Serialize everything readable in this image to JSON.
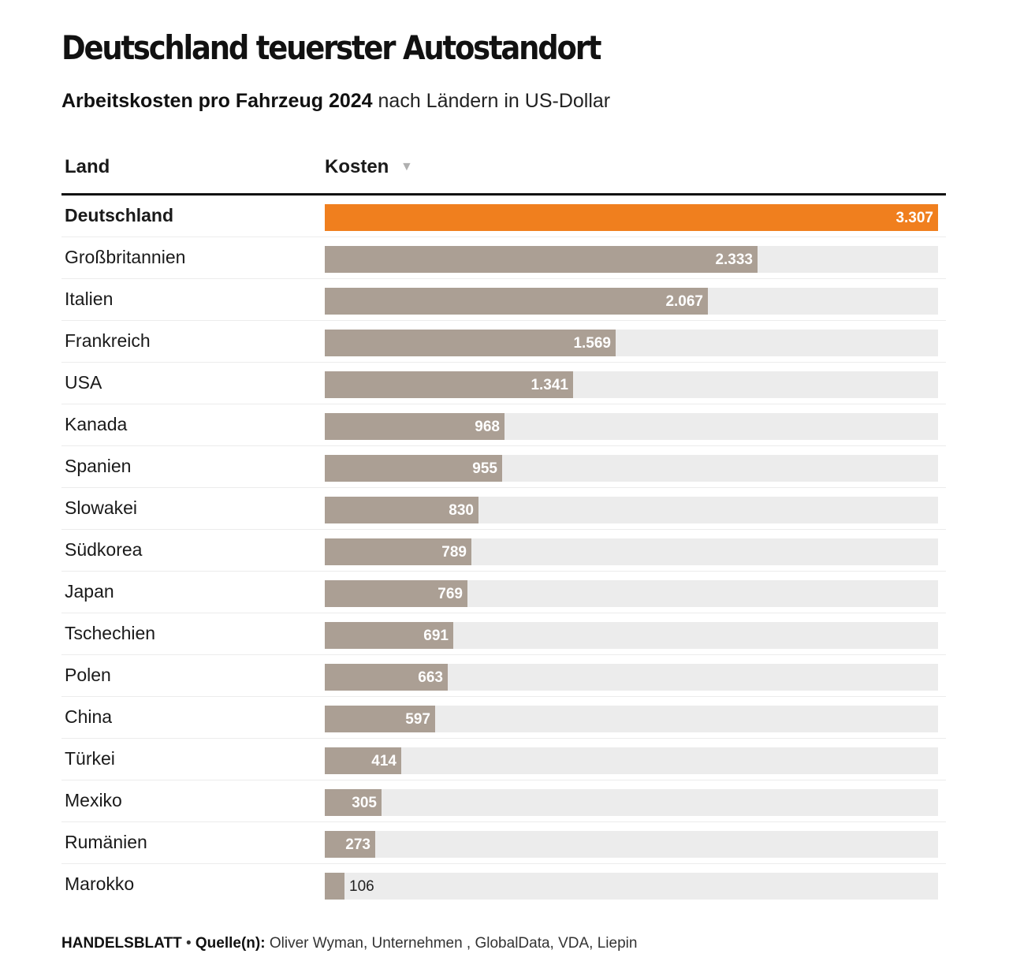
{
  "title": "Deutschland teuerster Autostandort",
  "subtitle_bold": "Arbeitskosten pro Fahrzeug 2024",
  "subtitle_rest": " nach Ländern in US-Dollar",
  "table": {
    "col_land": "Land",
    "col_kosten": "Kosten",
    "sort_icon": "▼"
  },
  "footer": {
    "publisher": "HANDELSBLATT",
    "separator": " • ",
    "source_label": "Quelle(n):",
    "source_text": " Oliver Wyman, Unternehmen , GlobalData, VDA, Liepin"
  },
  "colors": {
    "highlight": "#f07f1e",
    "bar": "#ab9f94",
    "track": "#ececec"
  },
  "chart_data": {
    "type": "bar",
    "orientation": "horizontal",
    "xlim": [
      0,
      3307
    ],
    "categories": [
      "Deutschland",
      "Großbritannien",
      "Italien",
      "Frankreich",
      "USA",
      "Kanada",
      "Spanien",
      "Slowakei",
      "Südkorea",
      "Japan",
      "Tschechien",
      "Polen",
      "China",
      "Türkei",
      "Mexiko",
      "Rumänien",
      "Marokko"
    ],
    "values": [
      3307,
      2333,
      2067,
      1569,
      1341,
      968,
      955,
      830,
      789,
      769,
      691,
      663,
      597,
      414,
      305,
      273,
      106
    ],
    "value_labels": [
      "3.307",
      "2.333",
      "2.067",
      "1.569",
      "1.341",
      "968",
      "955",
      "830",
      "789",
      "769",
      "691",
      "663",
      "597",
      "414",
      "305",
      "273",
      "106"
    ],
    "highlighted": [
      "Deutschland"
    ]
  }
}
